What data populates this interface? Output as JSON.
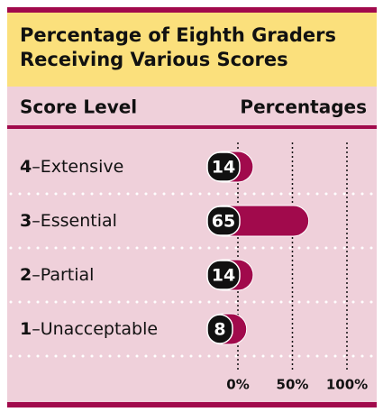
{
  "chart_data": {
    "type": "bar",
    "title": "Percentage of Eighth Graders Receiving Various Scores",
    "column_headers": [
      "Score Level",
      "Percentages"
    ],
    "levels": [
      "4",
      "3",
      "2",
      "1"
    ],
    "categories": [
      "–Extensive",
      "–Essential",
      "–Partial",
      "–Unacceptable"
    ],
    "values": [
      14,
      65,
      14,
      8
    ],
    "color": "#a10a4c",
    "label_color": "#111111",
    "xlim": [
      0,
      100
    ],
    "xticks": [
      {
        "value": 0,
        "label": "0%"
      },
      {
        "value": 50,
        "label": "50%"
      },
      {
        "value": 100,
        "label": "100%"
      }
    ],
    "grid": true
  }
}
